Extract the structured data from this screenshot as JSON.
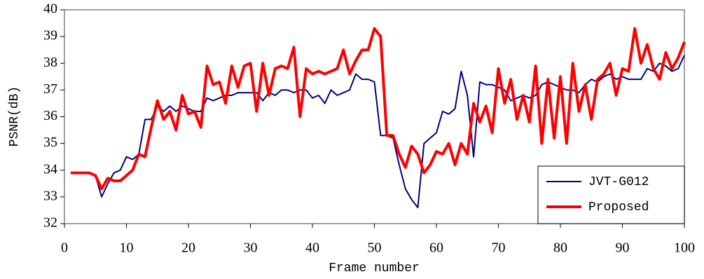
{
  "chart_data": {
    "type": "line",
    "xlabel": "Frame number",
    "ylabel": "PSNR(dB)",
    "x": [
      1,
      2,
      3,
      4,
      5,
      6,
      7,
      8,
      9,
      10,
      11,
      12,
      13,
      14,
      15,
      16,
      17,
      18,
      19,
      20,
      21,
      22,
      23,
      24,
      25,
      26,
      27,
      28,
      29,
      30,
      31,
      32,
      33,
      34,
      35,
      36,
      37,
      38,
      39,
      40,
      41,
      42,
      43,
      44,
      45,
      46,
      47,
      48,
      49,
      50,
      51,
      52,
      53,
      54,
      55,
      56,
      57,
      58,
      59,
      60,
      61,
      62,
      63,
      64,
      65,
      66,
      67,
      68,
      69,
      70,
      71,
      72,
      73,
      74,
      75,
      76,
      77,
      78,
      79,
      80,
      81,
      82,
      83,
      84,
      85,
      86,
      87,
      88,
      89,
      90,
      91,
      92,
      93,
      94,
      95,
      96,
      97,
      98,
      99,
      100
    ],
    "series": [
      {
        "name": "JVT-G012",
        "color": "#000080",
        "width": 2,
        "values": [
          33.9,
          33.9,
          33.9,
          33.9,
          33.8,
          33.0,
          33.5,
          33.9,
          34.0,
          34.5,
          34.4,
          34.6,
          35.9,
          35.9,
          36.4,
          36.2,
          36.4,
          36.2,
          36.4,
          36.3,
          36.2,
          36.2,
          36.7,
          36.6,
          36.7,
          36.8,
          36.8,
          36.9,
          36.9,
          36.9,
          36.9,
          36.6,
          36.9,
          36.8,
          37.0,
          37.0,
          36.9,
          37.0,
          37.0,
          36.7,
          36.8,
          36.5,
          37.0,
          36.8,
          36.9,
          37.0,
          37.6,
          37.4,
          37.4,
          37.3,
          35.3,
          35.3,
          35.2,
          34.2,
          33.3,
          32.9,
          32.6,
          35.0,
          35.2,
          35.4,
          36.2,
          36.1,
          36.3,
          37.7,
          36.8,
          34.5,
          37.3,
          37.2,
          37.2,
          37.1,
          37.0,
          36.6,
          36.7,
          36.8,
          36.7,
          36.8,
          37.2,
          37.3,
          37.2,
          37.1,
          37.0,
          37.0,
          36.9,
          37.2,
          37.4,
          37.3,
          37.5,
          37.6,
          37.4,
          37.5,
          37.4,
          37.4,
          37.4,
          37.8,
          37.7,
          38.0,
          37.9,
          37.7,
          37.8,
          38.3
        ]
      },
      {
        "name": "Proposed",
        "color": "#ff0000",
        "width": 4,
        "values": [
          33.9,
          33.9,
          33.9,
          33.9,
          33.8,
          33.3,
          33.7,
          33.6,
          33.6,
          33.8,
          34.0,
          34.6,
          34.5,
          35.6,
          36.6,
          35.9,
          36.2,
          35.5,
          36.8,
          36.1,
          36.2,
          35.6,
          37.9,
          37.2,
          37.3,
          36.5,
          37.9,
          37.1,
          37.9,
          38.0,
          36.2,
          38.0,
          36.8,
          37.8,
          37.9,
          37.8,
          38.6,
          36.0,
          37.8,
          37.6,
          37.7,
          37.6,
          37.7,
          37.8,
          38.5,
          37.6,
          38.1,
          38.5,
          38.5,
          39.3,
          39.0,
          35.3,
          35.3,
          34.6,
          34.1,
          34.9,
          34.6,
          33.9,
          34.2,
          34.7,
          34.6,
          35.0,
          34.2,
          35.0,
          34.6,
          36.5,
          35.8,
          36.4,
          35.4,
          37.8,
          36.5,
          37.4,
          35.9,
          36.8,
          35.8,
          37.9,
          35.0,
          37.4,
          35.2,
          37.5,
          35.0,
          38.0,
          36.2,
          37.2,
          35.9,
          37.4,
          37.6,
          38.0,
          36.8,
          37.8,
          37.7,
          39.3,
          38.0,
          38.7,
          37.8,
          37.4,
          38.4,
          37.8,
          38.2,
          38.8
        ]
      }
    ],
    "xlim": [
      0,
      100
    ],
    "xticks": [
      0,
      10,
      20,
      30,
      40,
      50,
      60,
      70,
      80,
      90,
      100
    ],
    "ylim": [
      32,
      40
    ],
    "yticks": [
      32,
      33,
      34,
      35,
      36,
      37,
      38,
      39,
      40
    ],
    "grid": false,
    "legend": "lower right"
  }
}
